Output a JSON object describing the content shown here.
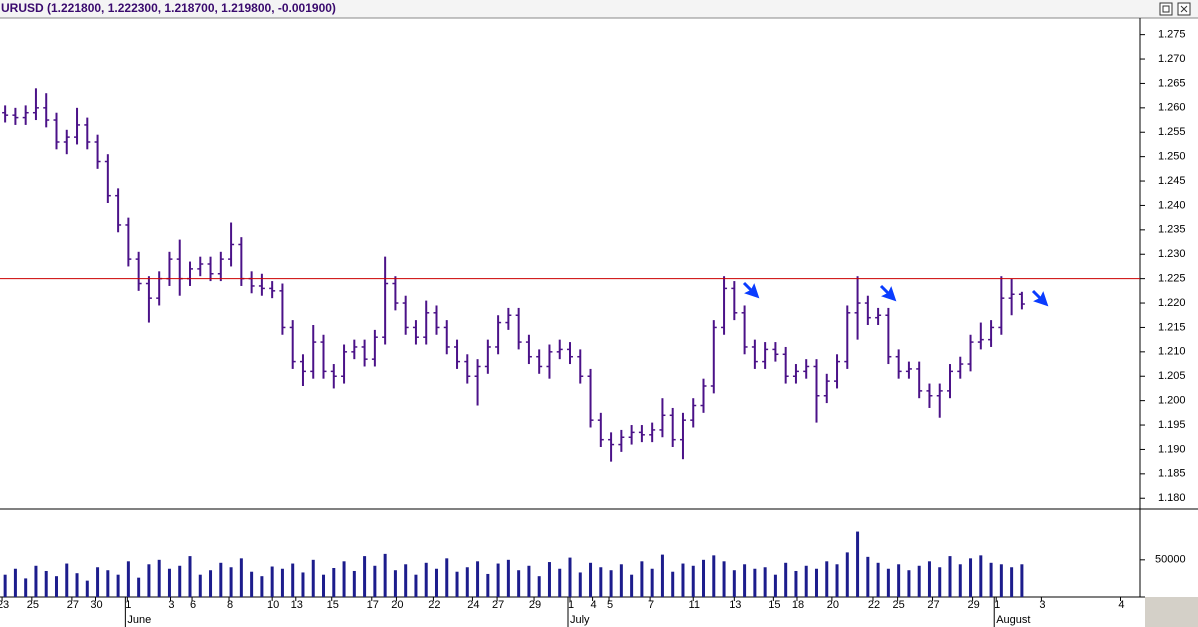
{
  "chart_data": {
    "type": "ohlc",
    "title": "URUSD (1.221800, 1.222300, 1.218700, 1.219800, -0.001900)",
    "color": "#4b1288",
    "volume_color": "#1c1c8c",
    "x": [
      0,
      1,
      2,
      3,
      4,
      5,
      6,
      7,
      8,
      9,
      10,
      11,
      12,
      13,
      14,
      15,
      16,
      17,
      18,
      19,
      20,
      21,
      22,
      23,
      24,
      25,
      26,
      27,
      28,
      29,
      30,
      31,
      32,
      33,
      34,
      35,
      36,
      37,
      38,
      39,
      40,
      41,
      42,
      43,
      44,
      45,
      46,
      47,
      48,
      49,
      50,
      51,
      52,
      53,
      54,
      55,
      56,
      57,
      58,
      59,
      60,
      61,
      62,
      63,
      64,
      65,
      66,
      67,
      68,
      69,
      70,
      71,
      72,
      73,
      74,
      75,
      76,
      77,
      78,
      79,
      80,
      81,
      82,
      83,
      84,
      85,
      86,
      87,
      88,
      89,
      90,
      91,
      92,
      93,
      94,
      95,
      96,
      97,
      98,
      99
    ],
    "open": [
      1.259,
      1.2585,
      1.258,
      1.259,
      1.26,
      1.2575,
      1.253,
      1.254,
      1.2565,
      1.253,
      1.249,
      1.242,
      1.236,
      1.229,
      1.224,
      1.221,
      1.225,
      1.229,
      1.225,
      1.227,
      1.228,
      1.226,
      1.229,
      1.232,
      1.225,
      1.2235,
      1.223,
      1.2225,
      1.215,
      1.208,
      1.206,
      1.212,
      1.206,
      1.205,
      1.21,
      1.211,
      1.2085,
      1.213,
      1.224,
      1.22,
      1.215,
      1.213,
      1.218,
      1.215,
      1.211,
      1.208,
      1.205,
      1.207,
      1.211,
      1.216,
      1.2175,
      1.212,
      1.209,
      1.207,
      1.21,
      1.2105,
      1.209,
      1.205,
      1.196,
      1.192,
      1.191,
      1.1925,
      1.1935,
      1.193,
      1.194,
      1.197,
      1.192,
      1.196,
      1.199,
      1.203,
      1.215,
      1.223,
      1.218,
      1.211,
      1.208,
      1.2105,
      1.2095,
      1.205,
      1.206,
      1.207,
      1.201,
      1.204,
      1.208,
      1.218,
      1.22,
      1.217,
      1.2175,
      1.209,
      1.206,
      1.2065,
      1.202,
      1.201,
      1.202,
      1.206,
      1.2075,
      1.212,
      1.2125,
      1.215,
      1.221,
      1.2218
    ],
    "high": [
      1.2605,
      1.26,
      1.2605,
      1.264,
      1.263,
      1.259,
      1.2555,
      1.26,
      1.258,
      1.2545,
      1.2505,
      1.2435,
      1.2375,
      1.2305,
      1.2255,
      1.2265,
      1.2305,
      1.233,
      1.2285,
      1.2295,
      1.2295,
      1.2305,
      1.2365,
      1.2335,
      1.2265,
      1.226,
      1.2245,
      1.224,
      1.2165,
      1.2095,
      1.2155,
      1.2135,
      1.2075,
      1.2115,
      1.2125,
      1.2125,
      1.2145,
      1.2295,
      1.2255,
      1.2215,
      1.2165,
      1.2205,
      1.2195,
      1.2165,
      1.2125,
      1.2095,
      1.2085,
      1.2125,
      1.2175,
      1.219,
      1.219,
      1.2135,
      1.2105,
      1.2115,
      1.2125,
      1.212,
      1.2105,
      1.2065,
      1.1975,
      1.1935,
      1.194,
      1.195,
      1.195,
      1.1955,
      1.2005,
      1.1985,
      1.1975,
      1.2005,
      1.2045,
      1.2165,
      1.2255,
      1.2245,
      1.2195,
      1.2125,
      1.212,
      1.212,
      1.211,
      1.2075,
      1.2085,
      1.2085,
      1.2055,
      1.2095,
      1.2195,
      1.2255,
      1.2215,
      1.219,
      1.219,
      1.2105,
      1.208,
      1.208,
      1.2035,
      1.2035,
      1.2075,
      1.209,
      1.2135,
      1.216,
      1.2165,
      1.2255,
      1.225,
      1.2223
    ],
    "low": [
      1.257,
      1.2565,
      1.2565,
      1.2575,
      1.256,
      1.2515,
      1.2505,
      1.2525,
      1.2515,
      1.2475,
      1.2405,
      1.2345,
      1.2275,
      1.2225,
      1.216,
      1.2195,
      1.2235,
      1.2215,
      1.2235,
      1.2255,
      1.2245,
      1.2245,
      1.2275,
      1.2235,
      1.222,
      1.2215,
      1.221,
      1.2135,
      1.2065,
      1.203,
      1.2045,
      1.2045,
      1.2025,
      1.2035,
      1.2085,
      1.207,
      1.207,
      1.2115,
      1.2185,
      1.2135,
      1.2115,
      1.2115,
      1.2135,
      1.2095,
      1.2065,
      1.2035,
      1.199,
      1.2055,
      1.2095,
      1.2145,
      1.2105,
      1.2075,
      1.2055,
      1.2045,
      1.2085,
      1.2075,
      1.2035,
      1.1945,
      1.1905,
      1.1875,
      1.1895,
      1.191,
      1.1915,
      1.1915,
      1.1925,
      1.1905,
      1.188,
      1.1945,
      1.1975,
      1.2015,
      1.2135,
      1.2165,
      1.2095,
      1.2065,
      1.2065,
      1.208,
      1.2035,
      1.2035,
      1.2045,
      1.1955,
      1.1995,
      1.2025,
      1.2065,
      1.2125,
      1.2155,
      1.2155,
      1.2075,
      1.2045,
      1.2045,
      1.2005,
      1.1985,
      1.1965,
      1.2005,
      1.2045,
      1.206,
      1.2105,
      1.211,
      1.2135,
      1.2175,
      1.2187
    ],
    "close": [
      1.2585,
      1.258,
      1.259,
      1.26,
      1.2575,
      1.253,
      1.254,
      1.2565,
      1.253,
      1.249,
      1.242,
      1.236,
      1.229,
      1.224,
      1.221,
      1.225,
      1.229,
      1.225,
      1.227,
      1.228,
      1.226,
      1.229,
      1.232,
      1.225,
      1.2235,
      1.223,
      1.2225,
      1.215,
      1.208,
      1.206,
      1.212,
      1.206,
      1.205,
      1.21,
      1.211,
      1.2085,
      1.213,
      1.224,
      1.22,
      1.215,
      1.213,
      1.218,
      1.215,
      1.211,
      1.208,
      1.205,
      1.207,
      1.211,
      1.216,
      1.2175,
      1.212,
      1.209,
      1.207,
      1.21,
      1.2105,
      1.209,
      1.205,
      1.196,
      1.192,
      1.191,
      1.1925,
      1.1935,
      1.193,
      1.194,
      1.197,
      1.192,
      1.196,
      1.199,
      1.203,
      1.215,
      1.223,
      1.218,
      1.211,
      1.208,
      1.2105,
      1.2095,
      1.205,
      1.206,
      1.207,
      1.201,
      1.204,
      1.208,
      1.218,
      1.22,
      1.217,
      1.2175,
      1.209,
      1.206,
      1.2065,
      1.202,
      1.201,
      1.202,
      1.206,
      1.2075,
      1.212,
      1.2125,
      1.215,
      1.221,
      1.2218,
      1.2198
    ],
    "xlim": [
      -0.5,
      110.5
    ],
    "ylim": [
      1.178,
      1.278
    ],
    "yticks": [
      {
        "value": 1.18,
        "label": "1.180"
      },
      {
        "value": 1.185,
        "label": "1.185"
      },
      {
        "value": 1.19,
        "label": "1.190"
      },
      {
        "value": 1.195,
        "label": "1.195"
      },
      {
        "value": 1.2,
        "label": "1.200"
      },
      {
        "value": 1.205,
        "label": "1.205"
      },
      {
        "value": 1.21,
        "label": "1.210"
      },
      {
        "value": 1.215,
        "label": "1.215"
      },
      {
        "value": 1.22,
        "label": "1.220"
      },
      {
        "value": 1.225,
        "label": "1.225"
      },
      {
        "value": 1.23,
        "label": "1.230"
      },
      {
        "value": 1.235,
        "label": "1.235"
      },
      {
        "value": 1.24,
        "label": "1.240"
      },
      {
        "value": 1.245,
        "label": "1.245"
      },
      {
        "value": 1.25,
        "label": "1.250"
      },
      {
        "value": 1.255,
        "label": "1.255"
      },
      {
        "value": 1.26,
        "label": "1.260"
      },
      {
        "value": 1.265,
        "label": "1.265"
      },
      {
        "value": 1.27,
        "label": "1.270"
      },
      {
        "value": 1.275,
        "label": "1.275"
      }
    ],
    "hline": {
      "value": 1.225,
      "color": "#cc0000"
    },
    "xticks": [
      {
        "value": -0.3,
        "label": "23"
      },
      {
        "value": 2.6,
        "label": "25"
      },
      {
        "value": 6.5,
        "label": "27"
      },
      {
        "value": 8.8,
        "label": "30"
      },
      {
        "value": 11.9,
        "label": "1"
      },
      {
        "value": 16.1,
        "label": "3"
      },
      {
        "value": 18.2,
        "label": "6"
      },
      {
        "value": 21.8,
        "label": "8"
      },
      {
        "value": 26.0,
        "label": "10"
      },
      {
        "value": 28.3,
        "label": "13"
      },
      {
        "value": 31.8,
        "label": "15"
      },
      {
        "value": 35.7,
        "label": "17"
      },
      {
        "value": 38.1,
        "label": "20"
      },
      {
        "value": 41.7,
        "label": "22"
      },
      {
        "value": 45.5,
        "label": "24"
      },
      {
        "value": 47.9,
        "label": "27"
      },
      {
        "value": 51.5,
        "label": "29"
      },
      {
        "value": 55.0,
        "label": "1"
      },
      {
        "value": 57.2,
        "label": "4"
      },
      {
        "value": 58.8,
        "label": "5"
      },
      {
        "value": 62.8,
        "label": "7"
      },
      {
        "value": 67.0,
        "label": "11"
      },
      {
        "value": 71.0,
        "label": "13"
      },
      {
        "value": 74.8,
        "label": "15"
      },
      {
        "value": 77.1,
        "label": "18"
      },
      {
        "value": 80.5,
        "label": "20"
      },
      {
        "value": 84.5,
        "label": "22"
      },
      {
        "value": 86.9,
        "label": "25"
      },
      {
        "value": 90.3,
        "label": "27"
      },
      {
        "value": 94.2,
        "label": "29"
      },
      {
        "value": 96.5,
        "label": "1"
      },
      {
        "value": 100.9,
        "label": "3"
      },
      {
        "value": 108.6,
        "label": "4"
      }
    ],
    "months": [
      {
        "value": 11.9,
        "label": "June"
      },
      {
        "value": 55.0,
        "label": "July"
      },
      {
        "value": 96.5,
        "label": "August"
      }
    ],
    "volume": {
      "values": [
        30000,
        38000,
        25000,
        42000,
        35000,
        28000,
        45000,
        32000,
        22000,
        40000,
        36000,
        30000,
        48000,
        26000,
        44000,
        50000,
        38000,
        42000,
        55000,
        30000,
        36000,
        46000,
        40000,
        52000,
        34000,
        28000,
        41000,
        38000,
        45000,
        33000,
        50000,
        30000,
        39000,
        48000,
        35000,
        55000,
        42000,
        58000,
        36000,
        44000,
        30000,
        46000,
        38000,
        52000,
        34000,
        40000,
        48000,
        31000,
        45000,
        50000,
        36000,
        42000,
        28000,
        47000,
        38000,
        53000,
        33000,
        46000,
        40000,
        36000,
        44000,
        30000,
        48000,
        38000,
        57000,
        34000,
        45000,
        42000,
        50000,
        56000,
        48000,
        36000,
        44000,
        38000,
        40000,
        30000,
        46000,
        35000,
        42000,
        38000,
        48000,
        44000,
        60000,
        88000,
        54000,
        46000,
        38000,
        44000,
        36000,
        42000,
        48000,
        40000,
        55000,
        44000,
        52000,
        56000,
        46000,
        44000,
        40000,
        44000
      ],
      "ylim": [
        0,
        117000
      ],
      "yticks": [
        50000
      ]
    }
  }
}
